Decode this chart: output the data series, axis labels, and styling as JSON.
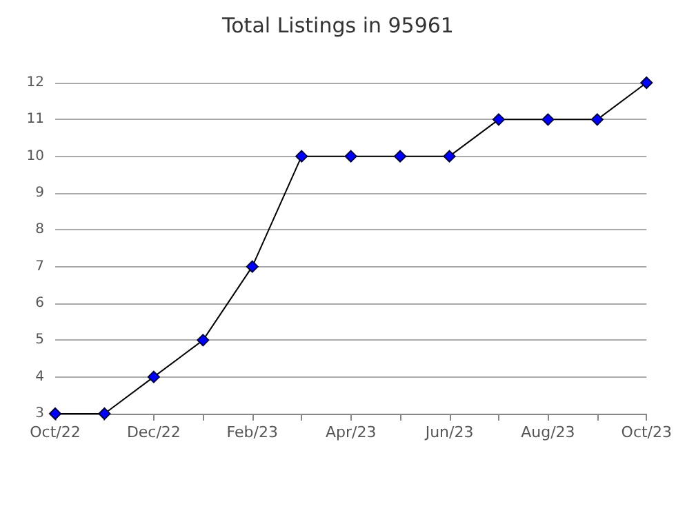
{
  "chart_data": {
    "type": "line",
    "title": "Total Listings in 95961",
    "categories": [
      "Oct/22",
      null,
      "Dec/22",
      null,
      "Feb/23",
      null,
      "Apr/23",
      null,
      "Jun/23",
      null,
      "Aug/23",
      null,
      "Oct/23"
    ],
    "series": [
      {
        "color": "#0000ff",
        "values": [
          3,
          3,
          4,
          5,
          7,
          10,
          10,
          10,
          10,
          11,
          11,
          11,
          12
        ]
      }
    ],
    "ylim": [
      3,
      12
    ],
    "yticks": [
      3,
      4,
      5,
      6,
      7,
      8,
      9,
      10,
      11,
      12
    ],
    "grid": "y",
    "marker": "diamond",
    "line_style": "solid"
  }
}
